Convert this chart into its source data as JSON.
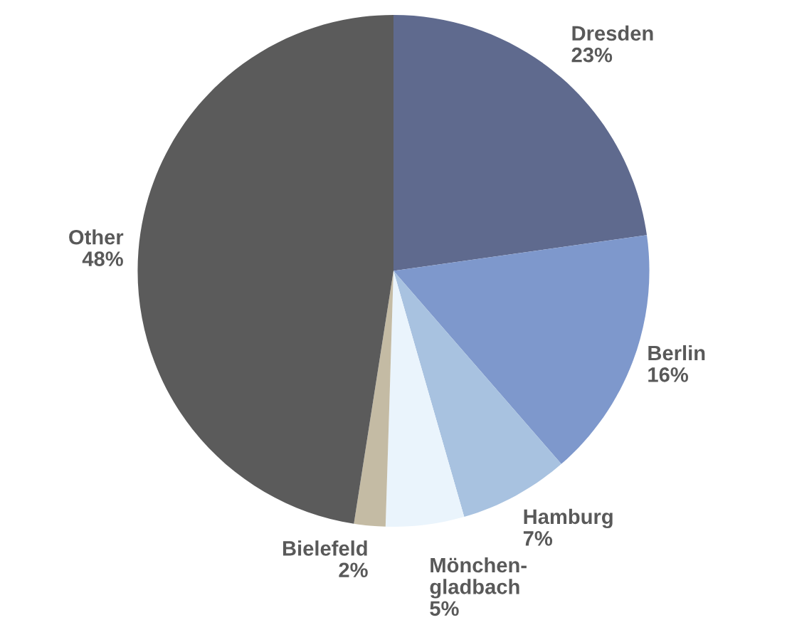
{
  "chart_data": {
    "type": "pie",
    "categories": [
      "Dresden",
      "Berlin",
      "Hamburg",
      "Mönchen-\ngladbach",
      "Bielefeld",
      "Other"
    ],
    "values": [
      23,
      16,
      7,
      5,
      2,
      48
    ],
    "value_labels": [
      "23%",
      "16%",
      "7%",
      "5%",
      "2%",
      "48%"
    ],
    "colors": [
      "#5f6a8e",
      "#7e98cc",
      "#a8c2e0",
      "#eaf4fc",
      "#c4bba4",
      "#5b5b5b"
    ]
  }
}
